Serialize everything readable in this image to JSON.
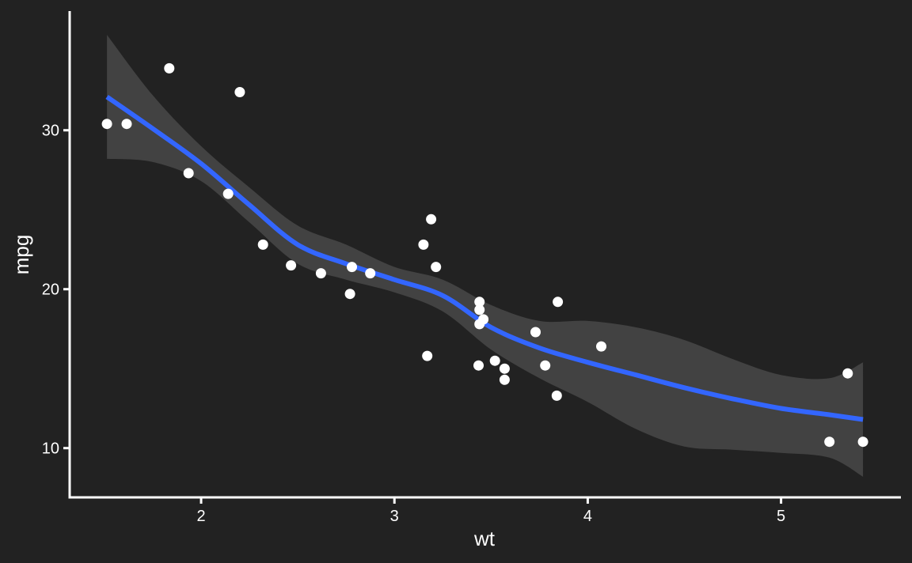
{
  "chart_data": {
    "type": "scatter",
    "title": "",
    "xlabel": "wt",
    "ylabel": "mpg",
    "xlim": [
      1.32,
      5.62
    ],
    "ylim": [
      6.9,
      37.5
    ],
    "x_ticks": [
      2,
      3,
      4,
      5
    ],
    "y_ticks": [
      10,
      20,
      30
    ],
    "x_tick_labels": [
      "2",
      "3",
      "4",
      "5"
    ],
    "y_tick_labels": [
      "10",
      "20",
      "30"
    ],
    "grid": false,
    "legend": "none",
    "colors": {
      "background": "#222222",
      "axis": "#ffffff",
      "text": "#ffffff",
      "points": "#ffffff",
      "smooth_line": "#3366ff",
      "confidence_band": "#595959"
    },
    "points": [
      {
        "x": 2.62,
        "y": 21.0
      },
      {
        "x": 2.875,
        "y": 21.0
      },
      {
        "x": 2.32,
        "y": 22.8
      },
      {
        "x": 3.215,
        "y": 21.4
      },
      {
        "x": 3.44,
        "y": 18.7
      },
      {
        "x": 3.46,
        "y": 18.1
      },
      {
        "x": 3.57,
        "y": 14.3
      },
      {
        "x": 3.19,
        "y": 24.4
      },
      {
        "x": 3.15,
        "y": 22.8
      },
      {
        "x": 3.44,
        "y": 19.2
      },
      {
        "x": 3.44,
        "y": 17.8
      },
      {
        "x": 4.07,
        "y": 16.4
      },
      {
        "x": 3.73,
        "y": 17.3
      },
      {
        "x": 3.78,
        "y": 15.2
      },
      {
        "x": 5.25,
        "y": 10.4
      },
      {
        "x": 5.424,
        "y": 10.4
      },
      {
        "x": 5.345,
        "y": 14.7
      },
      {
        "x": 2.2,
        "y": 32.4
      },
      {
        "x": 1.615,
        "y": 30.4
      },
      {
        "x": 1.835,
        "y": 33.9
      },
      {
        "x": 2.465,
        "y": 21.5
      },
      {
        "x": 3.52,
        "y": 15.5
      },
      {
        "x": 3.435,
        "y": 15.2
      },
      {
        "x": 3.84,
        "y": 13.3
      },
      {
        "x": 3.845,
        "y": 19.2
      },
      {
        "x": 1.935,
        "y": 27.3
      },
      {
        "x": 2.14,
        "y": 26.0
      },
      {
        "x": 1.513,
        "y": 30.4
      },
      {
        "x": 3.17,
        "y": 15.8
      },
      {
        "x": 2.77,
        "y": 19.7
      },
      {
        "x": 3.57,
        "y": 15.0
      },
      {
        "x": 2.78,
        "y": 21.4
      }
    ],
    "smooth": {
      "method": "loess",
      "x": [
        1.513,
        1.75,
        2.0,
        2.25,
        2.5,
        2.75,
        3.0,
        3.25,
        3.5,
        3.75,
        4.0,
        4.25,
        4.5,
        4.75,
        5.0,
        5.25,
        5.424
      ],
      "y": [
        32.1,
        30.1,
        27.9,
        25.3,
        22.8,
        21.6,
        20.6,
        19.6,
        17.6,
        16.3,
        15.4,
        14.6,
        13.8,
        13.1,
        12.5,
        12.1,
        11.8
      ],
      "lower": [
        28.2,
        28.0,
        26.8,
        24.2,
        21.6,
        20.6,
        19.8,
        18.6,
        16.2,
        14.4,
        12.9,
        11.2,
        10.1,
        9.9,
        9.7,
        9.4,
        8.2
      ],
      "upper": [
        36.0,
        32.2,
        29.0,
        26.4,
        24.0,
        22.8,
        21.4,
        20.6,
        19.0,
        18.0,
        18.0,
        17.6,
        16.8,
        15.6,
        14.6,
        14.4,
        15.4
      ]
    }
  }
}
